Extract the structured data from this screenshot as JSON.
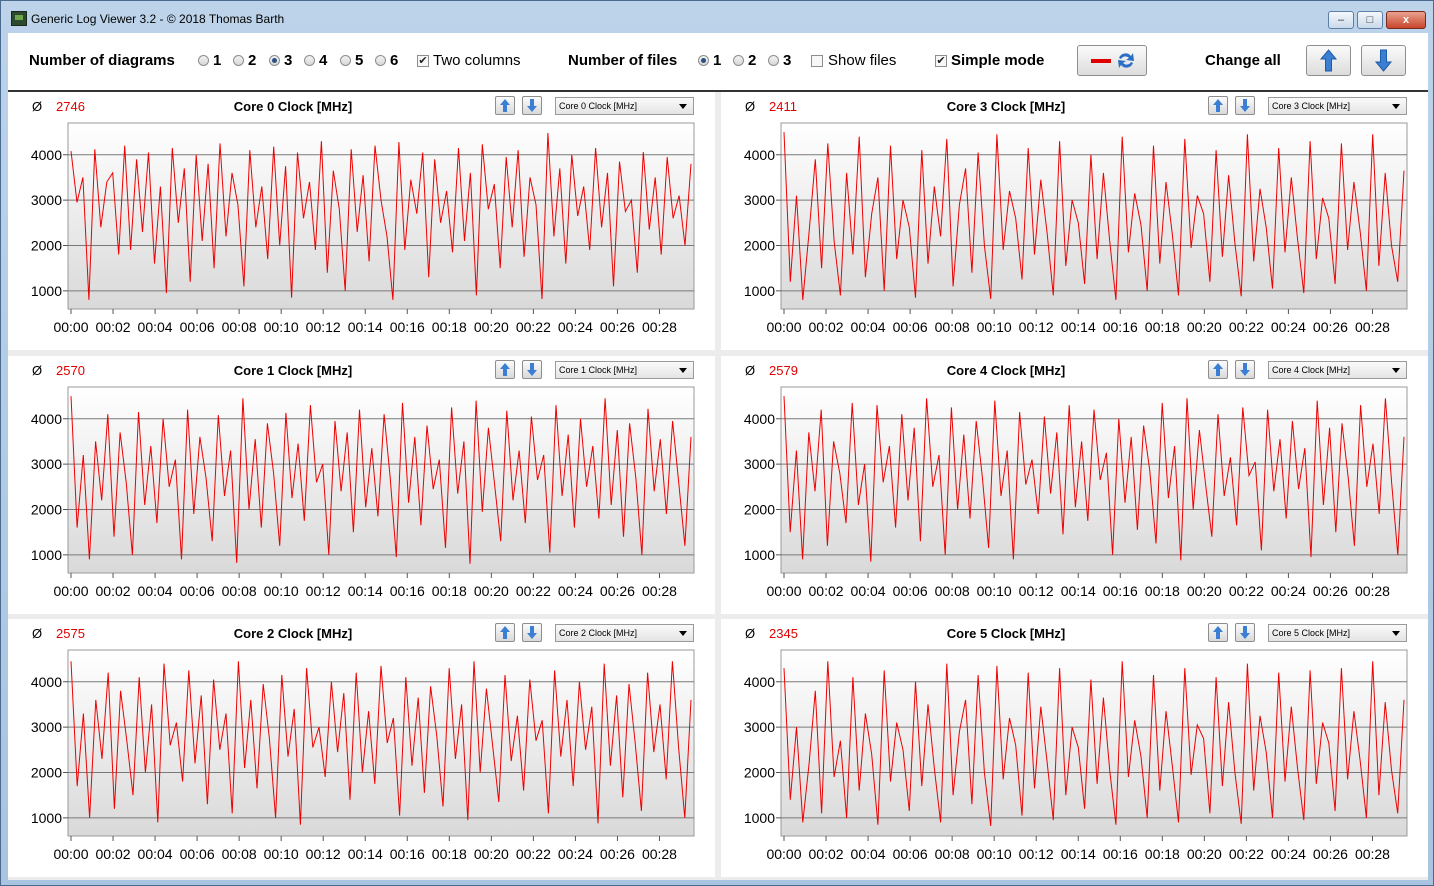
{
  "window": {
    "title": "Generic Log Viewer 3.2 - © 2018 Thomas Barth",
    "minimize_label": "–",
    "maximize_label": "□",
    "close_label": "x"
  },
  "toolbar": {
    "diagrams_label": "Number of diagrams",
    "diagram_options": [
      "1",
      "2",
      "3",
      "4",
      "5",
      "6"
    ],
    "diagram_selected": "3",
    "two_columns_label": "Two columns",
    "two_columns_checked": true,
    "files_label": "Number of files",
    "file_options": [
      "1",
      "2",
      "3"
    ],
    "file_selected": "1",
    "show_files_label": "Show files",
    "show_files_checked": false,
    "simple_mode_label": "Simple mode",
    "simple_mode_checked": true,
    "change_all_label": "Change all",
    "check_mark": "✔"
  },
  "series_color": "#ee0000",
  "avg_symbol": "Ø",
  "chart_data": [
    {
      "type": "line",
      "title": "Core 0 Clock [MHz]",
      "average": "2746",
      "selector_value": "Core 0 Clock [MHz]",
      "yticks": [
        1000,
        2000,
        3000,
        4000
      ],
      "ylim": [
        600,
        4700
      ],
      "xticks": [
        "00:00",
        "00:02",
        "00:04",
        "00:06",
        "00:08",
        "00:10",
        "00:12",
        "00:14",
        "00:16",
        "00:18",
        "00:20",
        "00:22",
        "00:24",
        "00:26",
        "00:28"
      ],
      "xrange_minutes": [
        0,
        29.5
      ],
      "series": [
        {
          "values": [
            4080,
            2950,
            3500,
            800,
            4120,
            2400,
            3400,
            3600,
            1800,
            4200,
            1900,
            3900,
            2300,
            4050,
            1600,
            3300,
            950,
            4150,
            2500,
            3700,
            1200,
            4000,
            2100,
            3800,
            1500,
            4250,
            2200,
            3600,
            2900,
            1100,
            4100,
            2400,
            3300,
            1700,
            4180,
            2000,
            3750,
            850,
            4050,
            2600,
            3400,
            1900,
            4300,
            1400,
            3650,
            2800,
            1000,
            4120,
            2300,
            3550,
            1650,
            4200,
            3000,
            2200,
            800,
            4280,
            1900,
            3450,
            2700,
            4050,
            1300,
            3900,
            2500,
            3200,
            1850,
            4150,
            2100,
            3600,
            900,
            4230,
            2800,
            3350,
            1500,
            3950,
            2400,
            4100,
            1750,
            3500,
            2900,
            820,
            4480,
            2200,
            3700,
            1600,
            4000,
            2650,
            3300,
            1900,
            4150,
            2400,
            3600,
            1100,
            3850,
            2750,
            3000,
            1400,
            4060,
            2350,
            3500,
            1800,
            3950,
            2600,
            3100,
            2000,
            3800
          ]
        }
      ]
    },
    {
      "type": "line",
      "title": "Core 1 Clock [MHz]",
      "average": "2570",
      "selector_value": "Core 1 Clock [MHz]",
      "yticks": [
        1000,
        2000,
        3000,
        4000
      ],
      "ylim": [
        600,
        4700
      ],
      "xticks": [
        "00:00",
        "00:02",
        "00:04",
        "00:06",
        "00:08",
        "00:10",
        "00:12",
        "00:14",
        "00:16",
        "00:18",
        "00:20",
        "00:22",
        "00:24",
        "00:26",
        "00:28"
      ],
      "xrange_minutes": [
        0,
        29.5
      ],
      "series": [
        {
          "values": [
            4500,
            1600,
            3200,
            900,
            3500,
            2200,
            4100,
            1400,
            3700,
            2600,
            1000,
            4150,
            2100,
            3400,
            1700,
            4000,
            2500,
            3100,
            900,
            4200,
            1900,
            3600,
            2700,
            1300,
            4080,
            2300,
            3300,
            820,
            4450,
            2000,
            3550,
            1600,
            3900,
            2800,
            1200,
            4130,
            2250,
            3450,
            1750,
            4300,
            2600,
            3000,
            1000,
            3950,
            2400,
            3700,
            1500,
            4200,
            2050,
            3350,
            1850,
            4100,
            2700,
            950,
            4350,
            2150,
            3600,
            1650,
            3850,
            2450,
            3100,
            1150,
            4250,
            2350,
            3500,
            800,
            4400,
            1950,
            3800,
            2550,
            1300,
            4180,
            2200,
            3300,
            1700,
            4050,
            2650,
            3200,
            1050,
            4300,
            2300,
            3650,
            1600,
            4000,
            2500,
            3400,
            1800,
            4450,
            2100,
            3750,
            1400,
            3900,
            2700,
            1000,
            4220,
            2400,
            3550,
            1900,
            3950,
            2600,
            1200,
            3600
          ]
        }
      ]
    },
    {
      "type": "line",
      "title": "Core 2 Clock [MHz]",
      "average": "2575",
      "selector_value": "Core 2 Clock [MHz]",
      "yticks": [
        1000,
        2000,
        3000,
        4000
      ],
      "ylim": [
        600,
        4700
      ],
      "xticks": [
        "00:00",
        "00:02",
        "00:04",
        "00:06",
        "00:08",
        "00:10",
        "00:12",
        "00:14",
        "00:16",
        "00:18",
        "00:20",
        "00:22",
        "00:24",
        "00:26",
        "00:28"
      ],
      "xrange_minutes": [
        0,
        29.5
      ],
      "series": [
        {
          "values": [
            4450,
            1700,
            3300,
            1000,
            3600,
            2300,
            4200,
            1200,
            3800,
            2700,
            1500,
            4100,
            2000,
            3500,
            900,
            4400,
            2600,
            3100,
            1800,
            4250,
            2200,
            3700,
            1300,
            4050,
            2500,
            3300,
            1100,
            4450,
            2100,
            3600,
            1650,
            3950,
            2750,
            1000,
            4150,
            2350,
            3400,
            850,
            4300,
            2550,
            3000,
            1900,
            4000,
            2450,
            3750,
            1400,
            4200,
            2000,
            3350,
            1750,
            4350,
            2650,
            3200,
            1050,
            4100,
            2150,
            3650,
            1550,
            3900,
            2800,
            1250,
            4300,
            2300,
            3500,
            950,
            4450,
            2000,
            3850,
            2600,
            1350,
            4150,
            2250,
            3250,
            1600,
            4050,
            2700,
            3150,
            1100,
            4250,
            2350,
            3600,
            1700,
            4000,
            2500,
            3450,
            880,
            4400,
            2150,
            3700,
            1450,
            3950,
            2650,
            1150,
            4200,
            2450,
            3500,
            1850,
            4450,
            2550,
            1000,
            3600
          ]
        }
      ]
    },
    {
      "type": "line",
      "title": "Core 3 Clock [MHz]",
      "average": "2411",
      "selector_value": "Core 3 Clock [MHz]",
      "yticks": [
        1000,
        2000,
        3000,
        4000
      ],
      "ylim": [
        600,
        4700
      ],
      "xticks": [
        "00:00",
        "00:02",
        "00:04",
        "00:06",
        "00:08",
        "00:10",
        "00:12",
        "00:14",
        "00:16",
        "00:18",
        "00:20",
        "00:22",
        "00:24",
        "00:26",
        "00:28"
      ],
      "xrange_minutes": [
        0,
        29.5
      ],
      "series": [
        {
          "values": [
            4500,
            1200,
            3100,
            800,
            2300,
            3900,
            1500,
            4250,
            2100,
            900,
            3600,
            1800,
            4400,
            1300,
            2700,
            3500,
            1000,
            4200,
            1700,
            3000,
            2400,
            850,
            4100,
            1600,
            3300,
            2200,
            4350,
            1100,
            2900,
            3700,
            1400,
            4050,
            2000,
            820,
            4450,
            1900,
            3200,
            2600,
            1250,
            4150,
            1800,
            3450,
            2300,
            900,
            4300,
            1550,
            3000,
            2500,
            1150,
            4000,
            1700,
            3600,
            2100,
            800,
            4400,
            1850,
            3150,
            2450,
            1000,
            4200,
            1600,
            3400,
            2250,
            900,
            4350,
            1950,
            3100,
            2700,
            1200,
            4100,
            1750,
            3550,
            2050,
            880,
            4450,
            1650,
            3250,
            2400,
            1050,
            4150,
            1850,
            3500,
            2150,
            950,
            4300,
            1700,
            3050,
            2600,
            1150,
            4250,
            1900,
            3400,
            2300,
            1000,
            4450,
            1550,
            3600,
            2000,
            1200,
            3650
          ]
        }
      ]
    },
    {
      "type": "line",
      "title": "Core 4 Clock [MHz]",
      "average": "2579",
      "selector_value": "Core 4 Clock [MHz]",
      "yticks": [
        1000,
        2000,
        3000,
        4000
      ],
      "ylim": [
        600,
        4700
      ],
      "xticks": [
        "00:00",
        "00:02",
        "00:04",
        "00:06",
        "00:08",
        "00:10",
        "00:12",
        "00:14",
        "00:16",
        "00:18",
        "00:20",
        "00:22",
        "00:24",
        "00:26",
        "00:28"
      ],
      "xrange_minutes": [
        0,
        29.5
      ],
      "series": [
        {
          "values": [
            4500,
            1500,
            3300,
            900,
            3700,
            2400,
            4200,
            1200,
            3500,
            2800,
            1700,
            4350,
            2100,
            3000,
            850,
            4300,
            2600,
            3400,
            1600,
            4100,
            2200,
            3800,
            1300,
            4450,
            2500,
            3200,
            1000,
            4250,
            2000,
            3650,
            1800,
            3950,
            2700,
            1150,
            4400,
            2300,
            3300,
            900,
            4150,
            2550,
            3100,
            1900,
            4050,
            2350,
            3700,
            1450,
            4300,
            2050,
            3500,
            1750,
            4200,
            2650,
            3250,
            1000,
            4000,
            2150,
            3600,
            1550,
            3850,
            2850,
            1250,
            4350,
            2250,
            3400,
            880,
            4450,
            2000,
            3750,
            2550,
            1400,
            4100,
            2300,
            3150,
            1650,
            4250,
            2750,
            3050,
            1100,
            4200,
            2400,
            3550,
            1800,
            3950,
            2450,
            3350,
            950,
            4400,
            2100,
            3800,
            1500,
            3900,
            2700,
            1200,
            4300,
            2500,
            3450,
            1900,
            4450,
            2600,
            1000,
            3600
          ]
        }
      ]
    },
    {
      "type": "line",
      "title": "Core 5 Clock [MHz]",
      "average": "2345",
      "selector_value": "Core 5 Clock [MHz]",
      "yticks": [
        1000,
        2000,
        3000,
        4000
      ],
      "ylim": [
        600,
        4700
      ],
      "xticks": [
        "00:00",
        "00:02",
        "00:04",
        "00:06",
        "00:08",
        "00:10",
        "00:12",
        "00:14",
        "00:16",
        "00:18",
        "00:20",
        "00:22",
        "00:24",
        "00:26",
        "00:28"
      ],
      "xrange_minutes": [
        0,
        29.5
      ],
      "series": [
        {
          "values": [
            4300,
            1400,
            3000,
            900,
            2200,
            3800,
            1100,
            4450,
            1900,
            2700,
            1000,
            4100,
            1600,
            3300,
            2400,
            850,
            4250,
            1800,
            3100,
            2500,
            1150,
            4000,
            1700,
            3500,
            2100,
            900,
            4400,
            1500,
            2900,
            3600,
            1300,
            4150,
            2000,
            820,
            4350,
            1850,
            3200,
            2600,
            1050,
            4200,
            1650,
            3450,
            2250,
            950,
            4300,
            1500,
            3000,
            2550,
            1200,
            4050,
            1750,
            3650,
            2050,
            850,
            4450,
            1900,
            3150,
            2350,
            1000,
            4150,
            1600,
            3350,
            2150,
            900,
            4300,
            1950,
            3050,
            2750,
            1100,
            4100,
            1700,
            3550,
            2000,
            870,
            4400,
            1600,
            3250,
            2450,
            1000,
            4200,
            1800,
            3450,
            2100,
            950,
            4250,
            1750,
            3100,
            2650,
            1150,
            4300,
            1850,
            3350,
            2250,
            1000,
            4450,
            1500,
            3550,
            2050,
            1100,
            3600
          ]
        }
      ]
    }
  ]
}
